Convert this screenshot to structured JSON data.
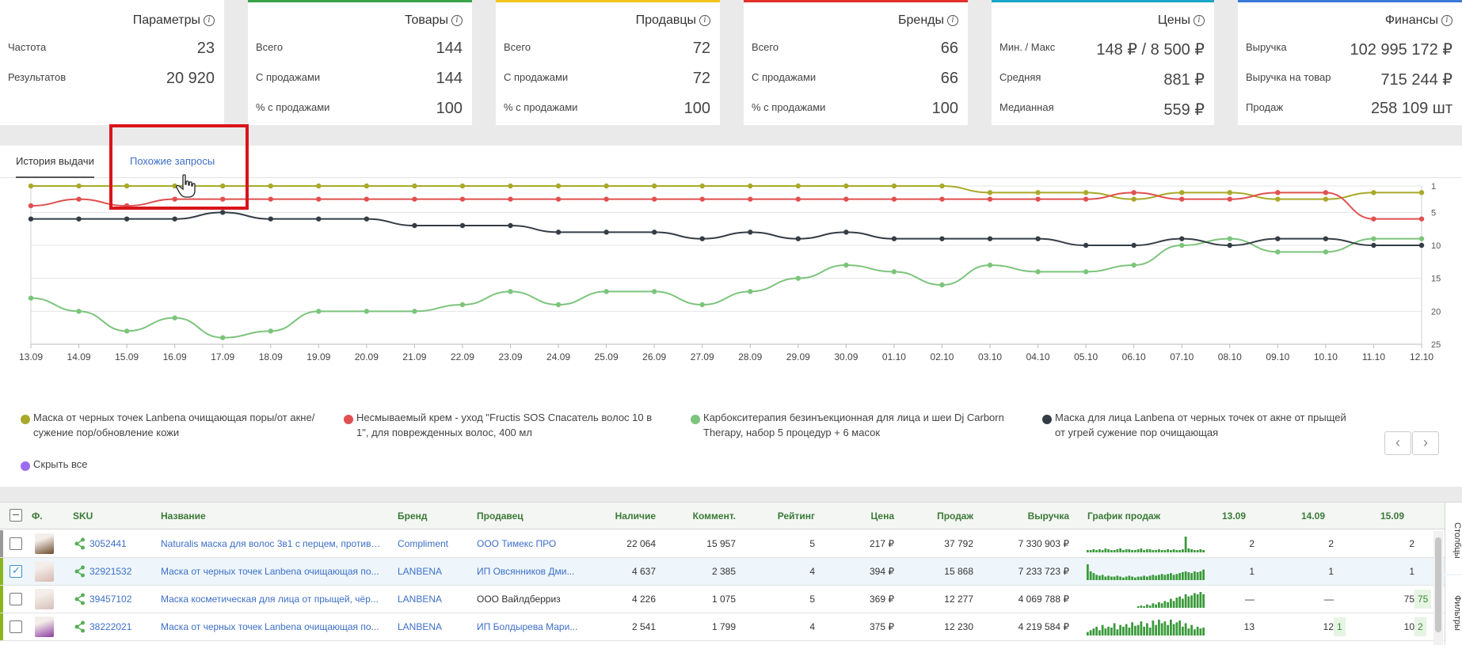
{
  "stats": [
    {
      "title": "Параметры",
      "accent": "",
      "rows": [
        {
          "label": "Частота",
          "value": "23"
        },
        {
          "label": "Результатов",
          "value": "20 920"
        }
      ]
    },
    {
      "title": "Товары",
      "accent": "#3aa34a",
      "rows": [
        {
          "label": "Всего",
          "value": "144"
        },
        {
          "label": "С продажами",
          "value": "144"
        },
        {
          "label": "% с продажами",
          "value": "100"
        }
      ]
    },
    {
      "title": "Продавцы",
      "accent": "#f2c31c",
      "rows": [
        {
          "label": "Всего",
          "value": "72"
        },
        {
          "label": "С продажами",
          "value": "72"
        },
        {
          "label": "% с продажами",
          "value": "100"
        }
      ]
    },
    {
      "title": "Бренды",
      "accent": "#e0322b",
      "rows": [
        {
          "label": "Всего",
          "value": "66"
        },
        {
          "label": "С продажами",
          "value": "66"
        },
        {
          "label": "% с продажами",
          "value": "100"
        }
      ]
    },
    {
      "title": "Цены",
      "accent": "#1aa7c6",
      "rows": [
        {
          "label": "Мин. / Макс",
          "value": "148 ₽ / 8 500 ₽"
        },
        {
          "label": "Средняя",
          "value": "881 ₽"
        },
        {
          "label": "Медианная",
          "value": "559 ₽"
        }
      ]
    },
    {
      "title": "Финансы",
      "accent": "#3a78d8",
      "rows": [
        {
          "label": "Выручка",
          "value": "102 995 172 ₽"
        },
        {
          "label": "Выручка на товар",
          "value": "715 244 ₽"
        },
        {
          "label": "Продаж",
          "value": "258 109 шт"
        }
      ]
    }
  ],
  "tabs": {
    "history": "История выдачи",
    "similar": "Похожие запросы"
  },
  "chart_data": {
    "type": "line",
    "x": [
      "13.09",
      "14.09",
      "15.09",
      "16.09",
      "17.09",
      "18.09",
      "19.09",
      "20.09",
      "21.09",
      "22.09",
      "23.09",
      "24.09",
      "25.09",
      "26.09",
      "27.09",
      "28.09",
      "29.09",
      "30.09",
      "01.10",
      "02.10",
      "03.10",
      "04.10",
      "05.10",
      "06.10",
      "07.10",
      "08.10",
      "09.10",
      "10.10",
      "11.10",
      "12.10"
    ],
    "ylim": [
      25,
      1
    ],
    "yticks": [
      1,
      5,
      10,
      15,
      20,
      25
    ],
    "y_axis_position": "right",
    "grid": true,
    "series": [
      {
        "name": "Маска от черных точек Lanbena очищающая поры/от акне/сужение пор/обновление кожи",
        "color": "#a9a92a",
        "values": [
          1,
          1,
          1,
          1,
          1,
          1,
          1,
          1,
          1,
          1,
          1,
          1,
          1,
          1,
          1,
          1,
          1,
          1,
          1,
          1,
          2,
          2,
          2,
          3,
          2,
          2,
          3,
          3,
          2,
          2
        ]
      },
      {
        "name": "Несмываемый крем - уход \"Fructis SOS Спасатель волос 10 в 1\", для поврежденных волос, 400 мл",
        "color": "#e05050",
        "values": [
          4,
          3,
          4,
          3,
          3,
          3,
          3,
          3,
          3,
          3,
          3,
          3,
          3,
          3,
          3,
          3,
          3,
          3,
          3,
          3,
          3,
          3,
          3,
          2,
          3,
          3,
          2,
          2,
          6,
          6
        ]
      },
      {
        "name": "Карбокситерапия безинъекционная для лица и шеи Dj Carborn Therapy, набор 5 процедур + 6 масок",
        "color": "#7cc47c",
        "values": [
          18,
          20,
          23,
          21,
          24,
          23,
          20,
          20,
          20,
          19,
          17,
          19,
          17,
          17,
          19,
          17,
          15,
          13,
          14,
          16,
          13,
          14,
          14,
          13,
          10,
          9,
          11,
          11,
          9,
          9
        ]
      },
      {
        "name": "Маска для лица Lanbena от черных точек от акне от прыщей от угрей сужение пор очищающая",
        "color": "#343d46",
        "values": [
          6,
          6,
          6,
          6,
          5,
          6,
          6,
          6,
          7,
          7,
          7,
          8,
          8,
          8,
          9,
          8,
          9,
          8,
          9,
          9,
          9,
          9,
          10,
          10,
          9,
          10,
          9,
          9,
          10,
          10
        ]
      }
    ]
  },
  "legend_hide": {
    "label": "Скрыть все",
    "color": "#9b6cf0"
  },
  "table": {
    "headers": {
      "photo": "Ф.",
      "sku": "SKU",
      "name": "Название",
      "brand": "Бренд",
      "seller": "Продавец",
      "stock": "Наличие",
      "comments": "Коммент.",
      "rating": "Рейтинг",
      "price": "Цена",
      "sales": "Продаж",
      "revenue": "Выручка",
      "chart": "График продаж",
      "d1": "13.09",
      "d2": "14.09",
      "d3": "15.09"
    },
    "rows": [
      {
        "bar": "#999999",
        "checked": false,
        "thumb": "#6b4a2a",
        "sku": "3052441",
        "name": "Naturalis маска для волос 3в1 с перцем, против ...",
        "brand": "Compliment",
        "seller": "ООО Тимекс ПРО",
        "seller_link": true,
        "stock": "22 064",
        "comments": "15 957",
        "rating": "5",
        "price": "217 ₽",
        "sales": "37 792",
        "revenue": "7 330 903 ₽",
        "d1": "2",
        "d2": "2",
        "d3": "2",
        "d2b": "",
        "d3b": "",
        "spark": [
          3,
          3,
          4,
          3,
          4,
          3,
          5,
          4,
          3,
          3,
          4,
          5,
          3,
          4,
          4,
          3,
          3,
          4,
          5,
          3,
          4,
          4,
          3,
          3,
          4,
          3,
          3,
          4,
          3,
          4,
          3,
          3,
          4,
          20,
          5,
          4,
          3,
          3,
          4,
          3
        ]
      },
      {
        "bar": "#8ab51e",
        "checked": true,
        "thumb": "#d8b8b0",
        "sku": "32921532",
        "name": "Маска от черных точек Lanbena очищающая по...",
        "brand": "LANBENA",
        "seller": "ИП Овсянников Дми...",
        "seller_link": true,
        "stock": "4 637",
        "comments": "2 385",
        "rating": "4",
        "price": "394 ₽",
        "sales": "15 868",
        "revenue": "7 233 723 ₽",
        "d1": "1",
        "d2": "1",
        "d3": "1",
        "d2b": "",
        "d3b": "",
        "spark": [
          18,
          10,
          8,
          6,
          5,
          6,
          4,
          5,
          4,
          4,
          5,
          4,
          3,
          4,
          5,
          4,
          3,
          4,
          4,
          5,
          4,
          5,
          6,
          5,
          6,
          7,
          6,
          7,
          8,
          6,
          7,
          8,
          9,
          10,
          9,
          8,
          10,
          9,
          10,
          12
        ]
      },
      {
        "bar": "#8ab51e",
        "checked": false,
        "thumb": "#d8c0b8",
        "sku": "39457102",
        "name": "Маска косметическая для лица от прыщей, чёр...",
        "brand": "LANBENA",
        "seller": "ООО Вайлдберриз",
        "seller_link": false,
        "stock": "4 226",
        "comments": "1 075",
        "rating": "5",
        "price": "369 ₽",
        "sales": "12 277",
        "revenue": "4 069 788 ₽",
        "d1": "—",
        "d2": "—",
        "d3": "75",
        "d2b": "",
        "d3b": "75",
        "spark": [
          0,
          0,
          0,
          0,
          0,
          0,
          0,
          0,
          0,
          0,
          0,
          0,
          0,
          0,
          0,
          0,
          0,
          1,
          2,
          1,
          3,
          2,
          4,
          3,
          5,
          4,
          6,
          5,
          8,
          6,
          9,
          10,
          8,
          12,
          10,
          11,
          13,
          12,
          14,
          12
        ]
      },
      {
        "bar": "#8ab51e",
        "checked": false,
        "thumb": "#8a3ca0",
        "sku": "38222021",
        "name": "Маска от черных точек Lanbena очищающая по...",
        "brand": "LANBENA",
        "seller": "ИП Болдырева Мари...",
        "seller_link": true,
        "stock": "2 541",
        "comments": "1 799",
        "rating": "4",
        "price": "375 ₽",
        "sales": "12 230",
        "revenue": "4 219 584 ₽",
        "d1": "13",
        "d2": "12",
        "d3": "10",
        "d2b": "1",
        "d3b": "2",
        "spark": [
          4,
          6,
          8,
          10,
          6,
          12,
          8,
          10,
          9,
          14,
          7,
          12,
          10,
          13,
          9,
          15,
          11,
          12,
          16,
          10,
          14,
          9,
          17,
          12,
          18,
          14,
          16,
          12,
          18,
          13,
          15,
          17,
          10,
          14,
          8,
          12,
          7,
          10,
          8,
          9
        ]
      }
    ]
  },
  "side_tabs": {
    "columns": "Столбцы",
    "filters": "Фильтры"
  }
}
